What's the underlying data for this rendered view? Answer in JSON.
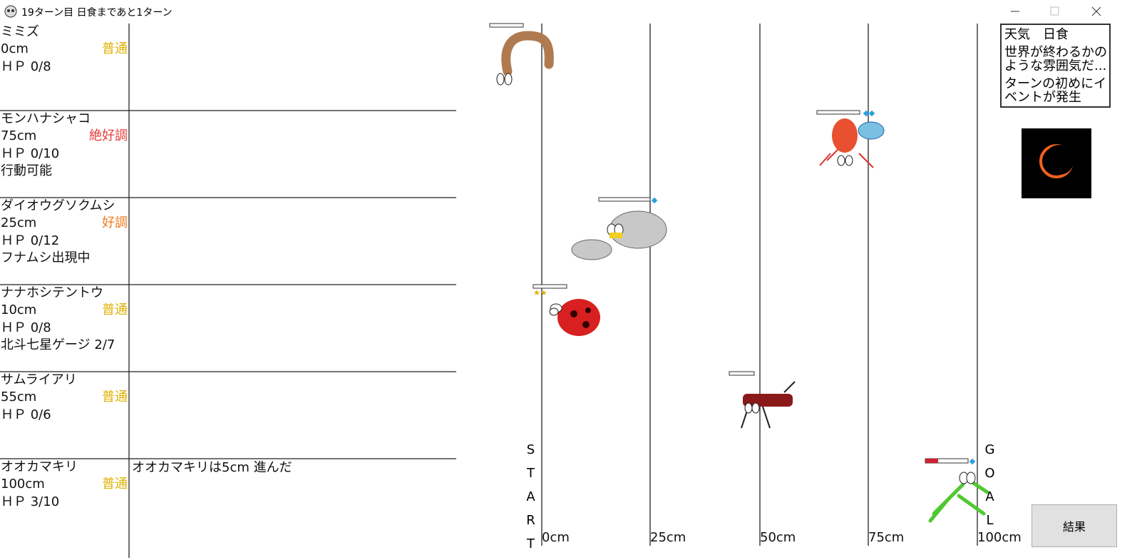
{
  "window": {
    "title": "19ターン目 日食まであと1ターン"
  },
  "insects": [
    {
      "name": "ミミズ",
      "distance": "0cm",
      "condition": "普通",
      "condition_color": "#e0b000",
      "hp": "ＨＰ 0/8"
    },
    {
      "name": "モンハナシャコ",
      "distance": "75cm",
      "condition": "絶好調",
      "condition_color": "#e83a3a",
      "hp": "ＨＰ 0/10",
      "status": "行動可能"
    },
    {
      "name": "ダイオウグソクムシ",
      "distance": "25cm",
      "condition": "好調",
      "condition_color": "#f07a1e",
      "hp": "ＨＰ 0/12",
      "status": "フナムシ出現中"
    },
    {
      "name": "ナナホシテントウ",
      "distance": "10cm",
      "condition": "普通",
      "condition_color": "#e0b000",
      "hp": "ＨＰ 0/8",
      "status": "北斗七星ゲージ 2/7"
    },
    {
      "name": "サムライアリ",
      "distance": "55cm",
      "condition": "普通",
      "condition_color": "#e0b000",
      "hp": "ＨＰ 0/6"
    },
    {
      "name": "オオカマキリ",
      "distance": "100cm",
      "condition": "普通",
      "condition_color": "#e0b000",
      "hp": "ＨＰ 3/10",
      "log": "オオカマキリは5cm 進んだ"
    }
  ],
  "track": {
    "start_label": "START",
    "goal_label": "GOAL",
    "distance_labels": [
      "0cm",
      "25cm",
      "50cm",
      "75cm",
      "100cm"
    ]
  },
  "info": {
    "weather": "天気　日食",
    "description": "世界が終わるかのような雰囲気だ...",
    "event": "ターンの初めにイベントが発生"
  },
  "buttons": {
    "result": "結果"
  }
}
